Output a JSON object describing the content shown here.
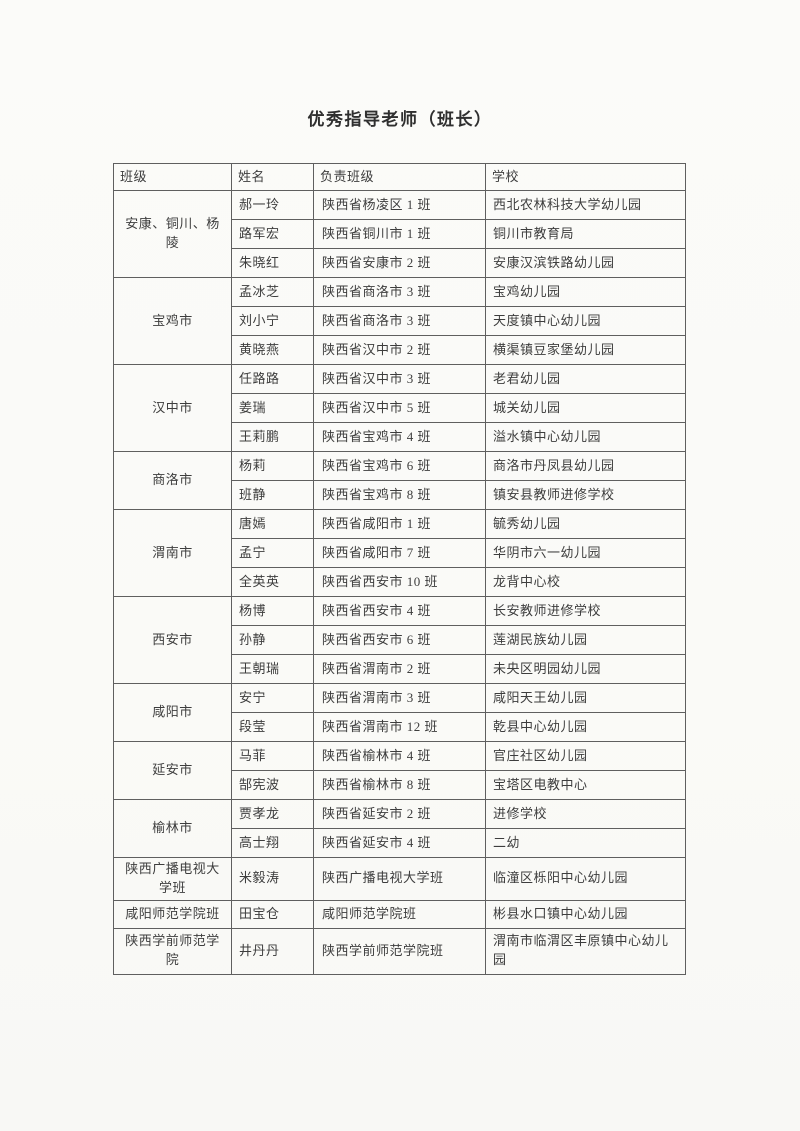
{
  "page": {
    "title": "优秀指导老师（班长）"
  },
  "table": {
    "headers": [
      "班级",
      "姓名",
      "负责班级",
      "学校"
    ],
    "groups": [
      {
        "group": "安康、铜川、杨陵",
        "rows": [
          {
            "name": "郝一玲",
            "class": "陕西省杨凌区 1 班",
            "school": "西北农林科技大学幼儿园"
          },
          {
            "name": "路军宏",
            "class": "陕西省铜川市 1 班",
            "school": "铜川市教育局"
          },
          {
            "name": "朱晓红",
            "class": "陕西省安康市 2 班",
            "school": "安康汉滨铁路幼儿园"
          }
        ]
      },
      {
        "group": "宝鸡市",
        "rows": [
          {
            "name": "孟冰芝",
            "class": "陕西省商洛市 3 班",
            "school": "宝鸡幼儿园"
          },
          {
            "name": "刘小宁",
            "class": "陕西省商洛市 3 班",
            "school": "天度镇中心幼儿园"
          },
          {
            "name": "黄晓燕",
            "class": "陕西省汉中市 2 班",
            "school": "横渠镇豆家堡幼儿园"
          }
        ]
      },
      {
        "group": "汉中市",
        "rows": [
          {
            "name": "任路路",
            "class": "陕西省汉中市 3 班",
            "school": "老君幼儿园"
          },
          {
            "name": "姜瑞",
            "class": "陕西省汉中市 5 班",
            "school": "城关幼儿园"
          },
          {
            "name": "王莉鹏",
            "class": "陕西省宝鸡市 4 班",
            "school": "溢水镇中心幼儿园"
          }
        ]
      },
      {
        "group": "商洛市",
        "rows": [
          {
            "name": "杨莉",
            "class": "陕西省宝鸡市 6 班",
            "school": "商洛市丹凤县幼儿园"
          },
          {
            "name": "班静",
            "class": "陕西省宝鸡市 8 班",
            "school": "镇安县教师进修学校"
          }
        ]
      },
      {
        "group": "渭南市",
        "rows": [
          {
            "name": "唐嫣",
            "class": "陕西省咸阳市 1 班",
            "school": "毓秀幼儿园"
          },
          {
            "name": "孟宁",
            "class": "陕西省咸阳市 7 班",
            "school": "华阴市六一幼儿园"
          },
          {
            "name": "全英英",
            "class": "陕西省西安市 10 班",
            "school": "龙背中心校"
          }
        ]
      },
      {
        "group": "西安市",
        "rows": [
          {
            "name": "杨博",
            "class": "陕西省西安市 4 班",
            "school": "长安教师进修学校"
          },
          {
            "name": "孙静",
            "class": "陕西省西安市 6 班",
            "school": "莲湖民族幼儿园"
          },
          {
            "name": "王朝瑞",
            "class": "陕西省渭南市 2 班",
            "school": "未央区明园幼儿园"
          }
        ]
      },
      {
        "group": "咸阳市",
        "rows": [
          {
            "name": "安宁",
            "class": "陕西省渭南市 3 班",
            "school": "咸阳天王幼儿园"
          },
          {
            "name": "段莹",
            "class": "陕西省渭南市 12 班",
            "school": "乾县中心幼儿园"
          }
        ]
      },
      {
        "group": "延安市",
        "rows": [
          {
            "name": "马菲",
            "class": "陕西省榆林市 4 班",
            "school": "官庄社区幼儿园"
          },
          {
            "name": "郜宪波",
            "class": "陕西省榆林市 8 班",
            "school": "宝塔区电教中心"
          }
        ]
      },
      {
        "group": "榆林市",
        "rows": [
          {
            "name": "贾孝龙",
            "class": "陕西省延安市 2 班",
            "school": "进修学校"
          },
          {
            "name": "高士翔",
            "class": "陕西省延安市 4 班",
            "school": "二幼"
          }
        ]
      },
      {
        "group": "陕西广播电视大学班",
        "rows": [
          {
            "name": "米毅涛",
            "class": "陕西广播电视大学班",
            "school": "临潼区栎阳中心幼儿园"
          }
        ]
      },
      {
        "group": "咸阳师范学院班",
        "rows": [
          {
            "name": "田宝仓",
            "class": "咸阳师范学院班",
            "school": "彬县水口镇中心幼儿园"
          }
        ]
      },
      {
        "group": "陕西学前师范学院",
        "rows": [
          {
            "name": "井丹丹",
            "class": "陕西学前师范学院班",
            "school": "渭南市临渭区丰原镇中心幼儿园"
          }
        ]
      }
    ]
  }
}
